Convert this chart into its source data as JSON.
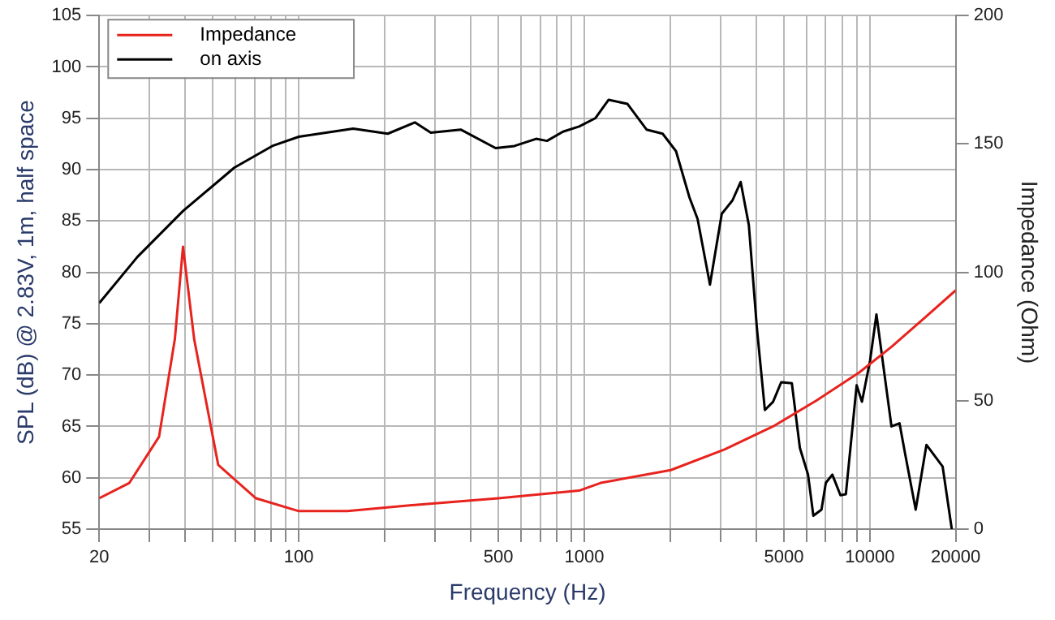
{
  "chart_data": {
    "type": "line",
    "xlabel": "Frequency (Hz)",
    "ylabel": "SPL (dB) @ 2.83V, 1m, half space",
    "y2label": "Impedance (Ohm)",
    "log": "x",
    "grid": true,
    "legend": "top left",
    "marker": "none",
    "line_style": "solid",
    "xlim": [
      20,
      20000
    ],
    "xticks": [
      20,
      {
        "value": 30,
        "label": null
      },
      {
        "value": 40,
        "label": null
      },
      {
        "value": 50,
        "label": null
      },
      {
        "value": 60,
        "label": null
      },
      {
        "value": 70,
        "label": null
      },
      {
        "value": 80,
        "label": null
      },
      {
        "value": 90,
        "label": null
      },
      100,
      {
        "value": 200,
        "label": null
      },
      {
        "value": 300,
        "label": null
      },
      {
        "value": 400,
        "label": null
      },
      500,
      {
        "value": 600,
        "label": null
      },
      {
        "value": 700,
        "label": null
      },
      {
        "value": 800,
        "label": null
      },
      {
        "value": 900,
        "label": null
      },
      1000,
      {
        "value": 2000,
        "label": null
      },
      {
        "value": 3000,
        "label": null
      },
      {
        "value": 4000,
        "label": null
      },
      5000,
      {
        "value": 6000,
        "label": null
      },
      {
        "value": 7000,
        "label": null
      },
      {
        "value": 8000,
        "label": null
      },
      {
        "value": 9000,
        "label": null
      },
      10000,
      20000
    ],
    "ylim": [
      55,
      105
    ],
    "yticks": [
      55,
      60,
      65,
      70,
      75,
      80,
      85,
      90,
      95,
      100,
      105
    ],
    "y2lim": [
      0,
      200
    ],
    "y2ticks": [
      0,
      50,
      100,
      150,
      200
    ],
    "series": [
      {
        "name": "Impedance",
        "color": "#e8231e",
        "axis": "y2",
        "x": [
          20,
          25.5,
          32.4,
          36.8,
          39.3,
          43,
          52.2,
          70.8,
          100,
          148,
          260,
          500,
          959,
          1141,
          2009,
          3098,
          4583,
          6490,
          9180,
          11910,
          15450,
          20000
        ],
        "values": [
          12,
          18,
          36,
          74,
          110,
          74,
          25,
          12,
          7,
          7,
          9.5,
          12,
          15,
          18,
          23,
          31,
          40,
          50,
          61,
          71,
          82,
          93
        ]
      },
      {
        "name": "on axis",
        "color": "#000000",
        "axis": "y",
        "x": [
          20,
          27.2,
          39.4,
          59.5,
          80.7,
          100,
          155,
          205,
          255,
          290,
          369,
          489,
          569,
          678,
          740,
          842,
          959,
          1092,
          1217,
          1417,
          1652,
          1881,
          2095,
          2335,
          2493,
          2755,
          3030,
          3303,
          3530,
          3770,
          4022,
          4290,
          4583,
          4894,
          5333,
          5690,
          6077,
          6343,
          6773,
          7014,
          7392,
          7893,
          8245,
          8993,
          9386,
          10020,
          10550,
          11910,
          12710,
          13280,
          14480,
          15790,
          17990,
          19370
        ],
        "values": [
          77,
          81.5,
          86,
          90.2,
          92.3,
          93.2,
          94,
          93.5,
          94.6,
          93.6,
          93.9,
          92.1,
          92.3,
          93,
          92.8,
          93.7,
          94.2,
          95,
          96.8,
          96.4,
          93.9,
          93.5,
          91.8,
          87.3,
          85.2,
          78.8,
          85.7,
          87,
          88.8,
          84.6,
          74.6,
          66.6,
          67.4,
          69.3,
          69.2,
          62.9,
          60.3,
          56.3,
          56.9,
          59.5,
          60.3,
          58.3,
          58.4,
          69,
          67.4,
          71.4,
          75.9,
          65,
          65.3,
          62.4,
          56.9,
          63.2,
          61.1,
          55
        ]
      }
    ]
  }
}
